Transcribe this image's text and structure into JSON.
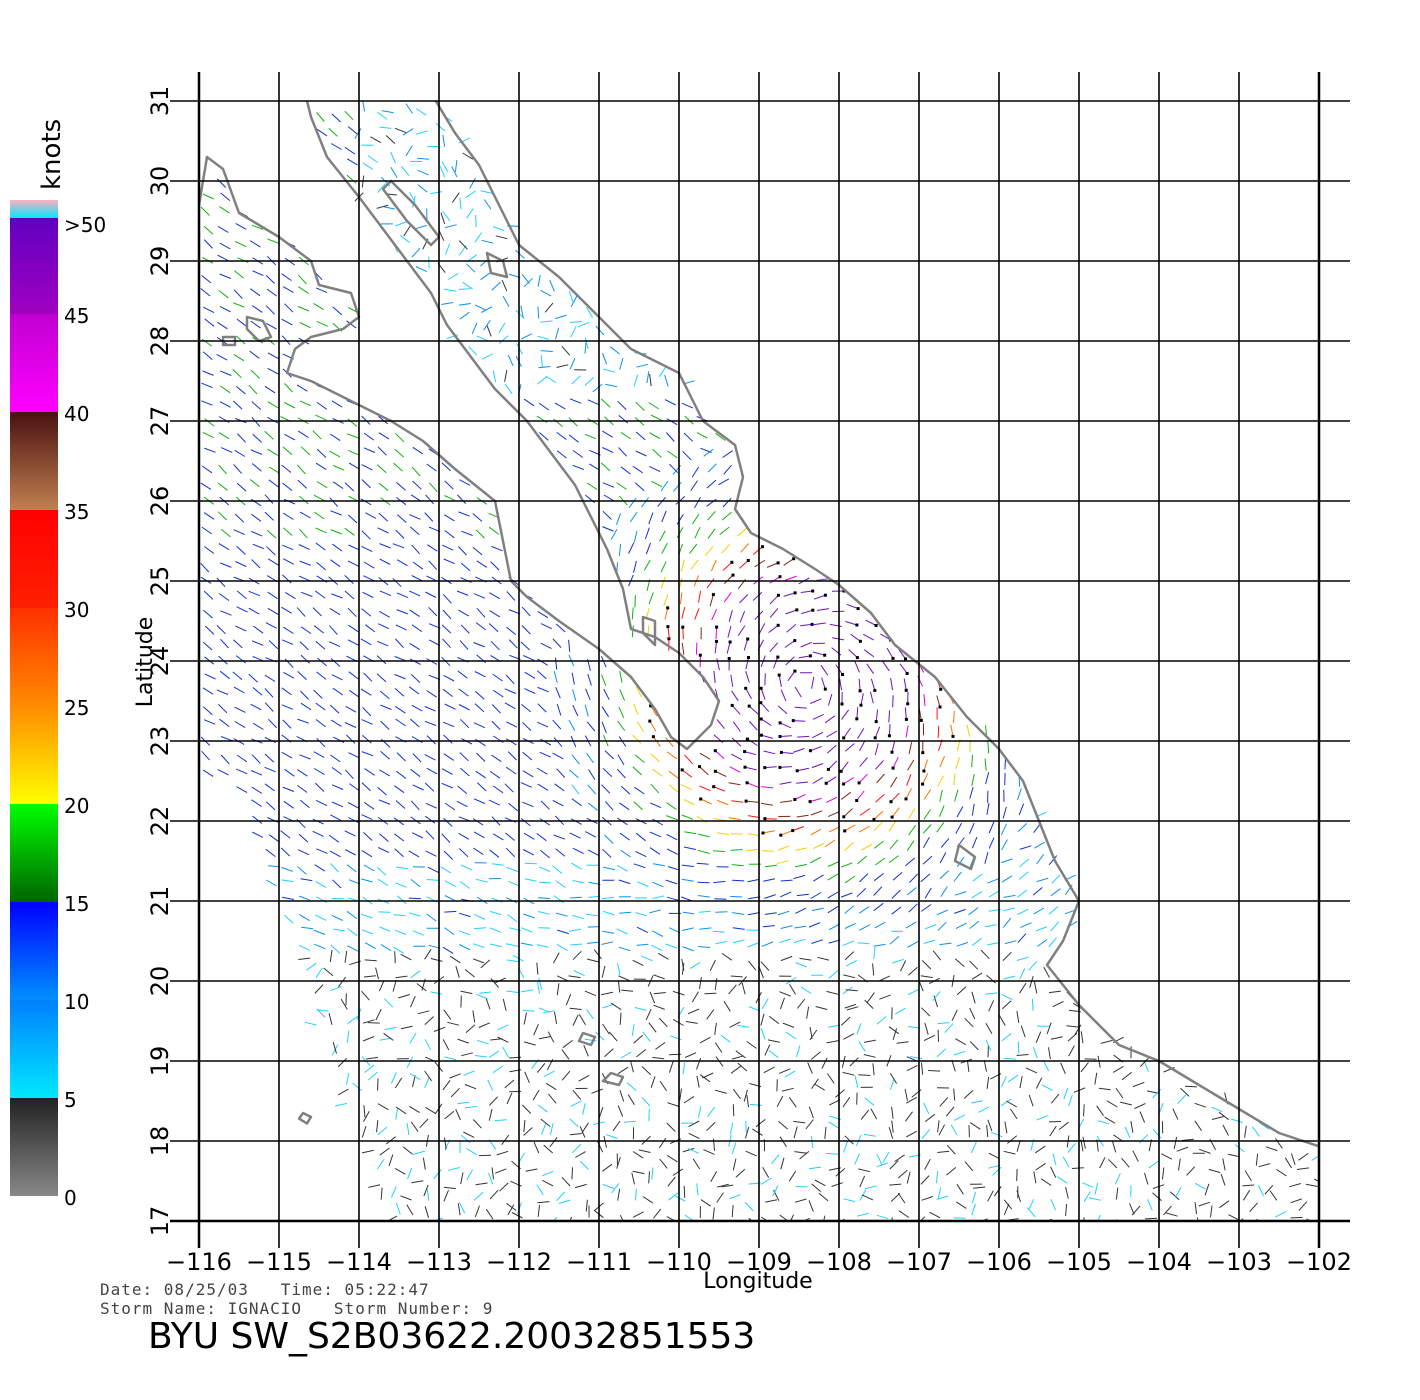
{
  "map": {
    "x_axis_label": "Longitude",
    "y_axis_label": "Latitude",
    "lon_ticks": [
      "−116",
      "−115",
      "−114",
      "−113",
      "−112",
      "−111",
      "−110",
      "−109",
      "−108",
      "−107",
      "−106",
      "−105",
      "−104",
      "−103",
      "−102"
    ],
    "lat_ticks": [
      "17",
      "18",
      "19",
      "20",
      "21",
      "22",
      "23",
      "24",
      "25",
      "26",
      "27",
      "28",
      "29",
      "30",
      "31"
    ],
    "lon_range": [
      -116,
      -101.6
    ],
    "lat_range": [
      17,
      31
    ],
    "coastline_color": "#808080",
    "grid_color": "#000000"
  },
  "legend": {
    "unit_label": "knots",
    "bins": [
      {
        "label": "0",
        "range": [
          0,
          5
        ],
        "colors": [
          "#888888",
          "#222222"
        ]
      },
      {
        "label": "5",
        "range": [
          5,
          10
        ],
        "colors": [
          "#00e8ff",
          "#0080ff"
        ]
      },
      {
        "label": "10",
        "range": [
          10,
          15
        ],
        "colors": [
          "#0090ff",
          "#0000ff"
        ]
      },
      {
        "label": "15",
        "range": [
          15,
          20
        ],
        "colors": [
          "#006400",
          "#00ff00"
        ]
      },
      {
        "label": "20",
        "range": [
          20,
          25
        ],
        "colors": [
          "#ffff00",
          "#ff8c00"
        ]
      },
      {
        "label": "25",
        "range": [
          25,
          30
        ],
        "colors": [
          "#ff8c00",
          "#ff3000"
        ]
      },
      {
        "label": "30",
        "range": [
          30,
          35
        ],
        "colors": [
          "#ff2000",
          "#ff0000"
        ]
      },
      {
        "label": "35",
        "range": [
          35,
          40
        ],
        "colors": [
          "#c08050",
          "#4a1010"
        ]
      },
      {
        "label": "40",
        "range": [
          40,
          45
        ],
        "colors": [
          "#ff00ff",
          "#c000d0"
        ]
      },
      {
        "label": "45",
        "range": [
          45,
          50
        ],
        "colors": [
          "#a000c0",
          "#6000c0"
        ]
      },
      {
        "label": ">50",
        "range": [
          50,
          60
        ],
        "colors": [
          "#00e8ff",
          "#ffb0c0"
        ]
      }
    ]
  },
  "info": {
    "date_line": "Date: 08/25/03   Time: 05:22:47",
    "storm_line": "Storm Name: IGNACIO   Storm Number: 9",
    "product_id": "BYU SW_S2B03622.20032851553"
  }
}
